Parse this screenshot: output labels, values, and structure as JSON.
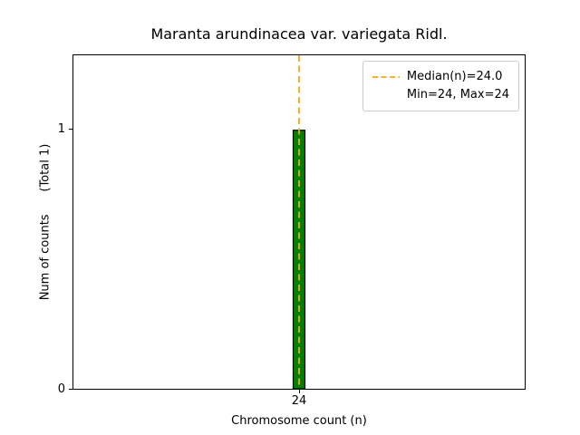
{
  "chart_data": {
    "type": "bar",
    "title": "Maranta arundinacea var. variegata Ridl.",
    "xlabel": "Chromosome count (n)",
    "ylabel": "Num of counts      (Total 1)",
    "categories": [
      "24"
    ],
    "values": [
      1
    ],
    "total_counts": 1,
    "ylim": [
      0,
      1.29
    ],
    "yticks": [
      "0",
      "1"
    ],
    "grid": "off",
    "bar_color": "#008000",
    "bar_edge_color": "#000000",
    "median_line": {
      "value": 24.0,
      "color": "#ffa500",
      "style": "dashed"
    },
    "legend": {
      "position": "upper right",
      "entries": [
        {
          "label": "Median(n)=24.0",
          "marker": "dashed-line",
          "color": "#ffa500"
        },
        {
          "label": "Min=24, Max=24",
          "marker": "none"
        }
      ]
    }
  }
}
